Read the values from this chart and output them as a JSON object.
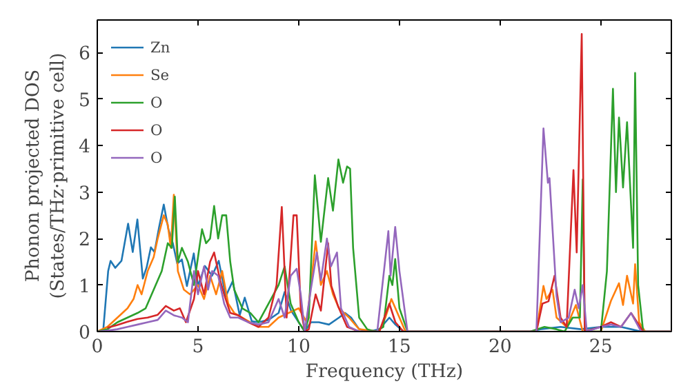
{
  "chart_data": {
    "type": "line",
    "xlabel": "Frequency (THz)",
    "ylabel": "Phonon projected DOS\n(States/THz·primitive cell)",
    "xlim": [
      0,
      28.5
    ],
    "ylim": [
      0,
      6.7
    ],
    "xticks": [
      0,
      5,
      10,
      15,
      20,
      25
    ],
    "yticks": [
      0,
      1,
      2,
      3,
      4,
      5,
      6
    ],
    "grid": false,
    "legend": "top left",
    "marker": "none",
    "line_style": "solid",
    "series": [
      {
        "name": "Zn",
        "color": "#1f77b4",
        "x": [
          0,
          0.3,
          0.54,
          0.66,
          0.89,
          1.2,
          1.53,
          1.76,
          1.99,
          2.26,
          2.45,
          2.66,
          2.84,
          3.07,
          3.3,
          3.53,
          3.75,
          3.97,
          4.2,
          4.45,
          4.79,
          5.0,
          5.34,
          5.7,
          6.03,
          6.38,
          6.72,
          7.07,
          7.32,
          7.67,
          8.0,
          8.5,
          9.0,
          9.3,
          9.62,
          10.0,
          10.3,
          10.6,
          11.0,
          11.5,
          12.0,
          12.3,
          12.6,
          13.0,
          13.5,
          14.0,
          14.5,
          14.8,
          15.2,
          15.6,
          21.5,
          22.0,
          23.0,
          24.0,
          25.0,
          26.0,
          26.5,
          27.0,
          28.5
        ],
        "values": [
          0,
          0.05,
          1.3,
          1.52,
          1.37,
          1.52,
          2.32,
          1.71,
          2.41,
          1.14,
          1.38,
          1.81,
          1.71,
          2.25,
          2.73,
          2.2,
          1.9,
          1.46,
          1.55,
          0.98,
          1.68,
          0.98,
          1.41,
          1.2,
          1.52,
          0.76,
          1.08,
          0.35,
          0.73,
          0.22,
          0.2,
          0.25,
          0.4,
          0.85,
          0.45,
          0.2,
          0,
          0.2,
          0.2,
          0.15,
          0.3,
          0.4,
          0.3,
          0.05,
          0,
          0.05,
          0.3,
          0.15,
          0,
          0,
          0,
          0.05,
          0.1,
          0.05,
          0.1,
          0.1,
          0.05,
          0,
          0
        ]
      },
      {
        "name": "Se",
        "color": "#ff7f0e",
        "x": [
          0,
          0.5,
          1.0,
          1.5,
          1.8,
          2.0,
          2.2,
          2.5,
          2.8,
          3.0,
          3.3,
          3.5,
          3.65,
          3.8,
          4.0,
          4.3,
          4.6,
          5.0,
          5.3,
          5.6,
          5.9,
          6.2,
          6.5,
          6.8,
          7.2,
          7.6,
          8.0,
          8.5,
          9.0,
          9.5,
          10.0,
          10.4,
          10.84,
          11.1,
          11.4,
          11.7,
          12.0,
          12.5,
          13.0,
          14.0,
          14.3,
          14.6,
          14.9,
          15.3,
          21.8,
          22.15,
          22.3,
          22.6,
          22.8,
          23.3,
          23.76,
          24.1,
          25.0,
          25.5,
          25.9,
          26.1,
          26.3,
          26.6,
          26.7,
          26.9,
          27.2,
          28.5
        ],
        "values": [
          0,
          0.1,
          0.3,
          0.5,
          0.7,
          1.0,
          0.8,
          1.3,
          1.6,
          2.0,
          2.5,
          2.3,
          1.8,
          2.94,
          1.3,
          0.9,
          0.8,
          1.0,
          0.7,
          1.2,
          0.8,
          1.3,
          0.6,
          0.4,
          0.3,
          0.2,
          0.1,
          0.1,
          0.3,
          0.4,
          0.5,
          0.2,
          1.94,
          1.0,
          1.3,
          0.8,
          0.5,
          0.3,
          0.05,
          0,
          0.3,
          0.7,
          0.4,
          0,
          0,
          0.98,
          0.7,
          0.9,
          0.3,
          0.1,
          0.57,
          0,
          0,
          0.66,
          1.04,
          0.57,
          1.2,
          0.6,
          1.45,
          0.2,
          0,
          0
        ]
      },
      {
        "name": "O",
        "color": "#2ca02c",
        "x": [
          0,
          0.5,
          1.0,
          1.5,
          2.0,
          2.4,
          2.8,
          3.2,
          3.5,
          3.7,
          3.85,
          4.0,
          4.2,
          4.5,
          4.8,
          5.0,
          5.2,
          5.4,
          5.6,
          5.8,
          6.0,
          6.2,
          6.4,
          6.6,
          6.8,
          7.2,
          7.6,
          8.0,
          8.5,
          9.0,
          9.3,
          9.6,
          10.0,
          10.3,
          10.5,
          10.8,
          11.1,
          11.46,
          11.7,
          11.97,
          12.2,
          12.4,
          12.55,
          12.7,
          13.0,
          13.4,
          13.8,
          14.2,
          14.5,
          14.65,
          14.79,
          15.0,
          15.4,
          21.5,
          22.2,
          22.8,
          23.2,
          23.6,
          23.96,
          24.1,
          24.2,
          24.6,
          25.0,
          25.3,
          25.6,
          25.75,
          25.9,
          26.1,
          26.3,
          26.6,
          26.7,
          26.85,
          27.1,
          28.5
        ],
        "values": [
          0,
          0.05,
          0.2,
          0.3,
          0.4,
          0.5,
          0.9,
          1.3,
          1.9,
          1.8,
          2.9,
          1.5,
          1.8,
          1.5,
          1.0,
          1.6,
          2.2,
          1.9,
          2.0,
          2.7,
          2.0,
          2.5,
          2.5,
          1.5,
          0.9,
          0.5,
          0.4,
          0.2,
          0.6,
          1.0,
          1.4,
          0.6,
          0.2,
          0,
          0.3,
          3.36,
          1.93,
          3.3,
          2.6,
          3.7,
          3.2,
          3.55,
          3.5,
          1.8,
          0.3,
          0.05,
          0,
          0.1,
          1.2,
          1.0,
          1.56,
          0.5,
          0,
          0,
          0.1,
          0.05,
          0,
          0.3,
          0.3,
          3.27,
          0,
          0,
          0,
          1.3,
          5.22,
          3.0,
          4.6,
          3.1,
          4.5,
          1.8,
          5.56,
          1.0,
          0,
          0
        ]
      },
      {
        "name": "O",
        "color": "#d62728",
        "x": [
          0.5,
          1.0,
          1.5,
          2.0,
          2.5,
          3.0,
          3.4,
          3.8,
          4.1,
          4.4,
          4.8,
          5.0,
          5.3,
          5.6,
          5.8,
          6.1,
          6.3,
          6.6,
          7.0,
          7.5,
          8.0,
          8.5,
          8.9,
          9.16,
          9.4,
          9.74,
          9.9,
          10.1,
          10.3,
          10.5,
          10.84,
          11.1,
          11.46,
          11.62,
          11.95,
          12.4,
          13.0,
          14.0,
          14.5,
          14.8,
          15.2,
          21.8,
          22.1,
          22.4,
          22.7,
          23.0,
          23.3,
          23.64,
          23.8,
          24.05,
          24.2,
          25.0,
          25.5,
          26.0,
          26.5,
          26.8,
          27.1,
          28.5
        ],
        "values": [
          0.08,
          0.14,
          0.21,
          0.27,
          0.3,
          0.36,
          0.55,
          0.45,
          0.5,
          0.2,
          0.7,
          1.3,
          0.8,
          1.5,
          1.7,
          1.1,
          0.8,
          0.4,
          0.35,
          0.2,
          0.1,
          0.3,
          1.0,
          2.68,
          0.3,
          2.5,
          2.5,
          0.5,
          0,
          0.05,
          0.8,
          0.45,
          1.9,
          0.98,
          0.55,
          0.1,
          0,
          0,
          0.6,
          0.2,
          0,
          0,
          0.6,
          0.65,
          1.2,
          0.3,
          0.1,
          3.47,
          1.7,
          6.4,
          0,
          0.1,
          0.2,
          0.1,
          0.4,
          0.2,
          0,
          0
        ]
      },
      {
        "name": "O",
        "color": "#9467bd",
        "x": [
          0,
          0.5,
          1.0,
          1.5,
          2.0,
          2.5,
          3.0,
          3.4,
          3.8,
          4.2,
          4.5,
          4.8,
          5.0,
          5.3,
          5.5,
          5.7,
          6.0,
          6.3,
          6.6,
          7.0,
          7.5,
          8.0,
          8.5,
          9.0,
          9.3,
          9.6,
          9.9,
          10.1,
          10.3,
          10.6,
          10.9,
          11.1,
          11.4,
          11.6,
          11.9,
          12.1,
          12.5,
          13.0,
          13.9,
          14.45,
          14.56,
          14.79,
          15.0,
          15.4,
          21.8,
          22.15,
          22.37,
          22.45,
          22.8,
          23.0,
          23.4,
          23.7,
          23.9,
          24.1,
          24.3,
          25.0,
          25.5,
          26.0,
          26.5,
          27.0,
          28.5
        ],
        "values": [
          0,
          0.02,
          0.05,
          0.1,
          0.15,
          0.2,
          0.25,
          0.45,
          0.35,
          0.3,
          0.2,
          1.3,
          0.8,
          1.4,
          0.9,
          1.3,
          1.2,
          0.6,
          0.3,
          0.3,
          0.2,
          0.15,
          0.2,
          0.7,
          0.3,
          1.2,
          1.35,
          0.8,
          0,
          0.9,
          1.7,
          1.1,
          2.0,
          1.4,
          1.7,
          0.5,
          0.1,
          0,
          0,
          2.16,
          1.2,
          2.25,
          1.3,
          0,
          0,
          4.37,
          3.2,
          3.3,
          0.76,
          0.2,
          0.3,
          0.9,
          0.5,
          1.0,
          0,
          0.1,
          0.15,
          0.1,
          0.4,
          0,
          0
        ]
      }
    ]
  }
}
